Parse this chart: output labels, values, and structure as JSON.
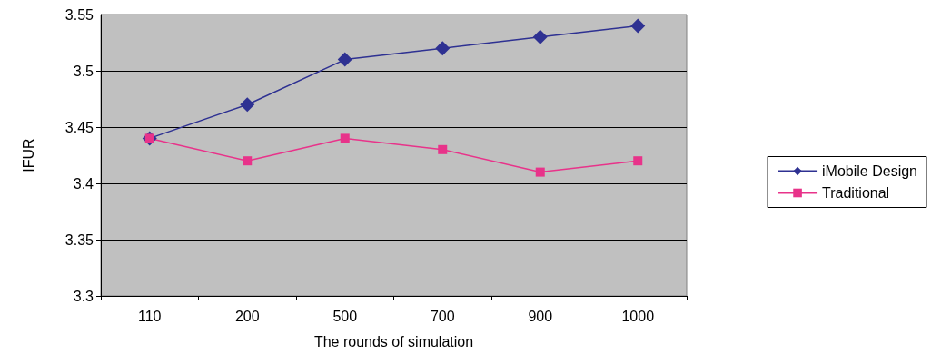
{
  "chart_data": {
    "type": "line",
    "xlabel": "The rounds of simulation",
    "ylabel": "IFUR",
    "categories": [
      "110",
      "200",
      "500",
      "700",
      "900",
      "1000"
    ],
    "series": [
      {
        "name": "iMobile Design",
        "color": "#2e3192",
        "marker": "diamond",
        "values": [
          3.44,
          3.47,
          3.51,
          3.52,
          3.53,
          3.54
        ]
      },
      {
        "name": "Traditional",
        "color": "#e8338a",
        "marker": "square",
        "values": [
          3.44,
          3.42,
          3.44,
          3.43,
          3.41,
          3.42
        ]
      }
    ],
    "ylim": [
      3.3,
      3.55
    ],
    "yticks": [
      3.3,
      3.35,
      3.4,
      3.45,
      3.5,
      3.55
    ],
    "grid": "y",
    "legend": "right"
  }
}
